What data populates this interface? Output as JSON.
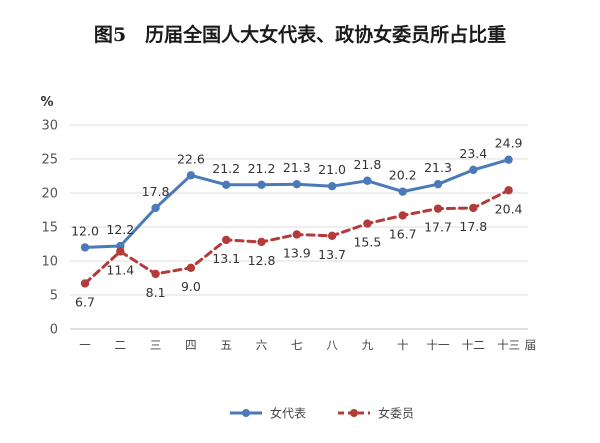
{
  "chart_data": {
    "type": "line",
    "title": "图5　历届全国人大女代表、政协女委员所占比重",
    "ylabel": "%",
    "xlabel": "",
    "x_suffix": "届",
    "categories": [
      "一",
      "二",
      "三",
      "四",
      "五",
      "六",
      "七",
      "八",
      "九",
      "十",
      "十一",
      "十二",
      "十三"
    ],
    "ylim": [
      0,
      30
    ],
    "yticks": [
      0,
      5,
      10,
      15,
      20,
      25,
      30
    ],
    "grid": true,
    "legend_position": "bottom",
    "series": [
      {
        "name": "女代表",
        "color": "#4a7ab8",
        "line_style": "solid",
        "values": [
          12.0,
          12.2,
          17.8,
          22.6,
          21.2,
          21.2,
          21.3,
          21.0,
          21.8,
          20.2,
          21.3,
          23.4,
          24.9
        ]
      },
      {
        "name": "女委员",
        "color": "#b53a3a",
        "line_style": "dashed",
        "values": [
          6.7,
          11.4,
          8.1,
          9.0,
          13.1,
          12.8,
          13.9,
          13.7,
          15.5,
          16.7,
          17.7,
          17.8,
          20.4
        ]
      }
    ]
  }
}
